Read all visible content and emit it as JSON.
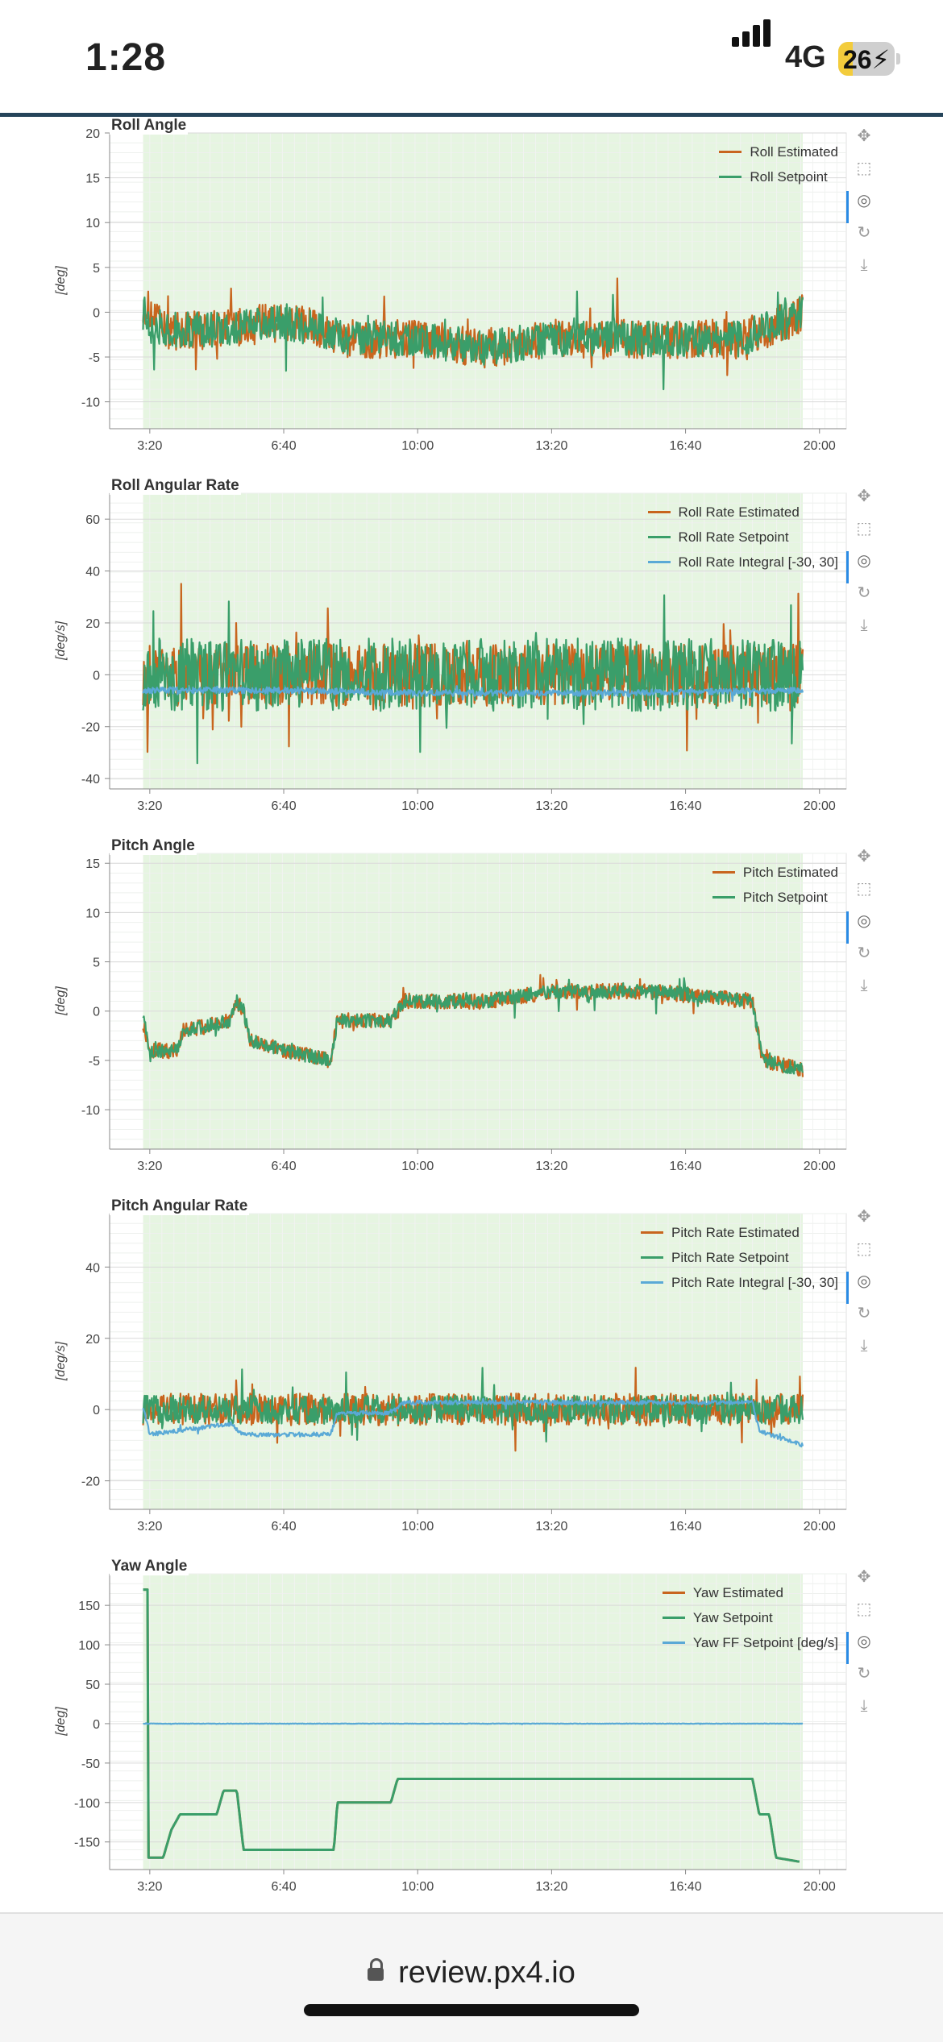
{
  "status_bar": {
    "time": "1:28",
    "network": "4G",
    "battery": "26",
    "battery_level": 0.26
  },
  "browser": {
    "url": "review.px4.io"
  },
  "colors": {
    "estimated": "#c8651e",
    "setpoint": "#3a9e6a",
    "integral": "#5aa9d6",
    "background_band": "#e6f5e1",
    "grid": "#e5e5e5"
  },
  "toolbar_icons": [
    "pan-icon",
    "box-zoom-icon",
    "wheel-zoom-icon",
    "reset-icon",
    "save-icon"
  ],
  "chart_data": [
    {
      "type": "line",
      "title": "Roll Angle",
      "ylabel": "[deg]",
      "xlabel": "",
      "x_ticks": [
        "3:20",
        "6:40",
        "10:00",
        "13:20",
        "16:40",
        "20:00"
      ],
      "x_range_s": [
        140,
        1240
      ],
      "shaded_range_s": [
        190,
        1175
      ],
      "ylim": [
        -13,
        20
      ],
      "y_ticks": [
        -10,
        -5,
        0,
        5,
        10,
        15,
        20
      ],
      "legend_position": "top-right",
      "series": [
        {
          "name": "Roll Estimated",
          "color": "#c8651e",
          "segments": [
            [
              190,
              1
            ],
            [
              220,
              -2
            ],
            [
              300,
              -2
            ],
            [
              400,
              -1
            ],
            [
              500,
              -3
            ],
            [
              600,
              -3
            ],
            [
              700,
              -4
            ],
            [
              800,
              -3
            ],
            [
              900,
              -3
            ],
            [
              1000,
              -3
            ],
            [
              1080,
              -3
            ],
            [
              1120,
              -2
            ],
            [
              1150,
              -1
            ],
            [
              1175,
              0
            ]
          ],
          "noise": 2.2
        },
        {
          "name": "Roll Setpoint",
          "color": "#3a9e6a",
          "segments": [
            [
              190,
              0
            ],
            [
              220,
              -2
            ],
            [
              300,
              -2
            ],
            [
              400,
              -1
            ],
            [
              500,
              -3
            ],
            [
              600,
              -3
            ],
            [
              700,
              -4
            ],
            [
              800,
              -3
            ],
            [
              900,
              -3
            ],
            [
              1000,
              -3
            ],
            [
              1080,
              -3
            ],
            [
              1120,
              -2
            ],
            [
              1150,
              -1
            ],
            [
              1175,
              0
            ]
          ],
          "noise": 2.0
        }
      ]
    },
    {
      "type": "line",
      "title": "Roll Angular Rate",
      "ylabel": "[deg/s]",
      "xlabel": "",
      "x_ticks": [
        "3:20",
        "6:40",
        "10:00",
        "13:20",
        "16:40",
        "20:00"
      ],
      "x_range_s": [
        140,
        1240
      ],
      "shaded_range_s": [
        190,
        1175
      ],
      "ylim": [
        -44,
        70
      ],
      "y_ticks": [
        -40,
        -20,
        0,
        20,
        40,
        60
      ],
      "legend_position": "top-right",
      "series": [
        {
          "name": "Roll Rate Estimated",
          "color": "#c8651e",
          "segments": [
            [
              190,
              0
            ],
            [
              1175,
              0
            ]
          ],
          "noise": 12
        },
        {
          "name": "Roll Rate Setpoint",
          "color": "#3a9e6a",
          "segments": [
            [
              190,
              0
            ],
            [
              1175,
              0
            ]
          ],
          "noise": 14
        },
        {
          "name": "Roll Rate Integral [-30, 30]",
          "color": "#5aa9d6",
          "segments": [
            [
              190,
              -6
            ],
            [
              400,
              -6
            ],
            [
              600,
              -7
            ],
            [
              900,
              -7
            ],
            [
              1175,
              -6
            ]
          ],
          "noise": 1.2
        }
      ]
    },
    {
      "type": "line",
      "title": "Pitch Angle",
      "ylabel": "[deg]",
      "xlabel": "",
      "x_ticks": [
        "3:20",
        "6:40",
        "10:00",
        "13:20",
        "16:40",
        "20:00"
      ],
      "x_range_s": [
        140,
        1240
      ],
      "shaded_range_s": [
        190,
        1175
      ],
      "ylim": [
        -14,
        16
      ],
      "y_ticks": [
        -10,
        -5,
        0,
        5,
        10,
        15
      ],
      "legend_position": "top-right",
      "series": [
        {
          "name": "Pitch Estimated",
          "color": "#c8651e",
          "segments": [
            [
              190,
              -1
            ],
            [
              200,
              -4
            ],
            [
              240,
              -4
            ],
            [
              250,
              -2
            ],
            [
              320,
              -1
            ],
            [
              330,
              1
            ],
            [
              340,
              0
            ],
            [
              350,
              -3
            ],
            [
              400,
              -4
            ],
            [
              470,
              -5
            ],
            [
              480,
              -1
            ],
            [
              560,
              -1
            ],
            [
              580,
              1
            ],
            [
              700,
              1
            ],
            [
              800,
              2
            ],
            [
              950,
              2
            ],
            [
              1100,
              1
            ],
            [
              1115,
              -5
            ],
            [
              1175,
              -6
            ]
          ],
          "noise": 0.8
        },
        {
          "name": "Pitch Setpoint",
          "color": "#3a9e6a",
          "segments": [
            [
              190,
              0
            ],
            [
              200,
              -4
            ],
            [
              240,
              -4
            ],
            [
              250,
              -2
            ],
            [
              320,
              -1
            ],
            [
              330,
              1
            ],
            [
              340,
              0
            ],
            [
              350,
              -3
            ],
            [
              400,
              -4
            ],
            [
              470,
              -5
            ],
            [
              480,
              -1
            ],
            [
              560,
              -1
            ],
            [
              580,
              1
            ],
            [
              700,
              1
            ],
            [
              800,
              2
            ],
            [
              950,
              2
            ],
            [
              1100,
              1
            ],
            [
              1115,
              -5
            ],
            [
              1175,
              -6
            ]
          ],
          "noise": 0.7
        }
      ]
    },
    {
      "type": "line",
      "title": "Pitch Angular Rate",
      "ylabel": "[deg/s]",
      "xlabel": "",
      "x_ticks": [
        "3:20",
        "6:40",
        "10:00",
        "13:20",
        "16:40",
        "20:00"
      ],
      "x_range_s": [
        140,
        1240
      ],
      "shaded_range_s": [
        190,
        1175
      ],
      "ylim": [
        -28,
        55
      ],
      "y_ticks": [
        -20,
        0,
        20,
        40
      ],
      "legend_position": "top-right",
      "series": [
        {
          "name": "Pitch Rate Estimated",
          "color": "#c8651e",
          "segments": [
            [
              190,
              0
            ],
            [
              1175,
              0
            ]
          ],
          "noise": 4.5
        },
        {
          "name": "Pitch Rate Setpoint",
          "color": "#3a9e6a",
          "segments": [
            [
              190,
              0
            ],
            [
              1175,
              0
            ]
          ],
          "noise": 4
        },
        {
          "name": "Pitch Rate Integral [-30, 30]",
          "color": "#5aa9d6",
          "segments": [
            [
              190,
              1
            ],
            [
              200,
              -7
            ],
            [
              320,
              -4
            ],
            [
              340,
              -7
            ],
            [
              470,
              -7
            ],
            [
              480,
              -1
            ],
            [
              560,
              -1
            ],
            [
              580,
              2
            ],
            [
              1100,
              2
            ],
            [
              1110,
              -6
            ],
            [
              1175,
              -10
            ]
          ],
          "noise": 0.6
        }
      ]
    },
    {
      "type": "line",
      "title": "Yaw Angle",
      "ylabel": "[deg]",
      "xlabel": "",
      "x_ticks": [
        "3:20",
        "6:40",
        "10:00",
        "13:20",
        "16:40",
        "20:00"
      ],
      "x_range_s": [
        140,
        1240
      ],
      "shaded_range_s": [
        190,
        1175
      ],
      "ylim": [
        -185,
        190
      ],
      "y_ticks": [
        -150,
        -100,
        -50,
        0,
        50,
        100,
        150
      ],
      "legend_position": "top-right",
      "series": [
        {
          "name": "Yaw Estimated",
          "color": "#c8651e",
          "step": true,
          "segments": [
            [
              190,
              170
            ],
            [
              197,
              170
            ],
            [
              198,
              -170
            ],
            [
              220,
              -170
            ],
            [
              232,
              -135
            ],
            [
              245,
              -115
            ],
            [
              300,
              -115
            ],
            [
              310,
              -85
            ],
            [
              330,
              -85
            ],
            [
              340,
              -160
            ],
            [
              475,
              -160
            ],
            [
              480,
              -100
            ],
            [
              560,
              -100
            ],
            [
              570,
              -70
            ],
            [
              1100,
              -70
            ],
            [
              1110,
              -115
            ],
            [
              1125,
              -115
            ],
            [
              1135,
              -170
            ],
            [
              1170,
              -175
            ]
          ],
          "noise": 0
        },
        {
          "name": "Yaw Setpoint",
          "color": "#3a9e6a",
          "step": true,
          "segments": [
            [
              190,
              170
            ],
            [
              197,
              170
            ],
            [
              198,
              -170
            ],
            [
              220,
              -170
            ],
            [
              232,
              -135
            ],
            [
              245,
              -115
            ],
            [
              300,
              -115
            ],
            [
              310,
              -85
            ],
            [
              330,
              -85
            ],
            [
              340,
              -160
            ],
            [
              475,
              -160
            ],
            [
              480,
              -100
            ],
            [
              560,
              -100
            ],
            [
              570,
              -70
            ],
            [
              1100,
              -70
            ],
            [
              1110,
              -115
            ],
            [
              1125,
              -115
            ],
            [
              1135,
              -170
            ],
            [
              1170,
              -175
            ]
          ],
          "noise": 0
        },
        {
          "name": "Yaw FF Setpoint [deg/s]",
          "color": "#5aa9d6",
          "segments": [
            [
              190,
              0
            ],
            [
              1175,
              0
            ]
          ],
          "noise": 0.3
        }
      ]
    }
  ]
}
